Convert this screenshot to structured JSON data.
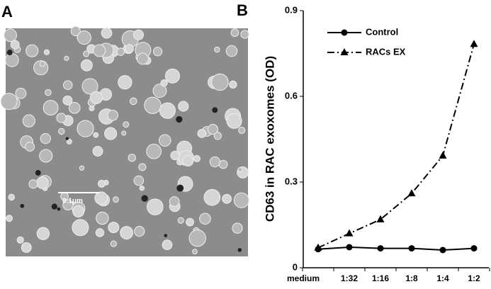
{
  "panel_labels": [
    "A",
    "B"
  ],
  "scale_bar": "0.1μm",
  "chart_data": {
    "type": "line",
    "y_label": "CD63 in RAC exoxomes (OD)",
    "categories": [
      "medium",
      "1:32",
      "1:16",
      "1:8",
      "1:4",
      "1:2"
    ],
    "series": [
      {
        "name": "Control",
        "color": "#000000",
        "marker": "circle",
        "line_style": "solid",
        "values": [
          0.065,
          0.072,
          0.068,
          0.068,
          0.062,
          0.068
        ]
      },
      {
        "name": "RACs EX",
        "color": "#000000",
        "marker": "triangle",
        "line_style": "dashdot",
        "values": [
          0.07,
          0.12,
          0.169,
          0.26,
          0.392,
          0.783
        ]
      }
    ],
    "ylim": [
      0,
      0.9
    ],
    "yticks": [
      0,
      0.3,
      0.6,
      0.9
    ],
    "legend": "upper left"
  }
}
